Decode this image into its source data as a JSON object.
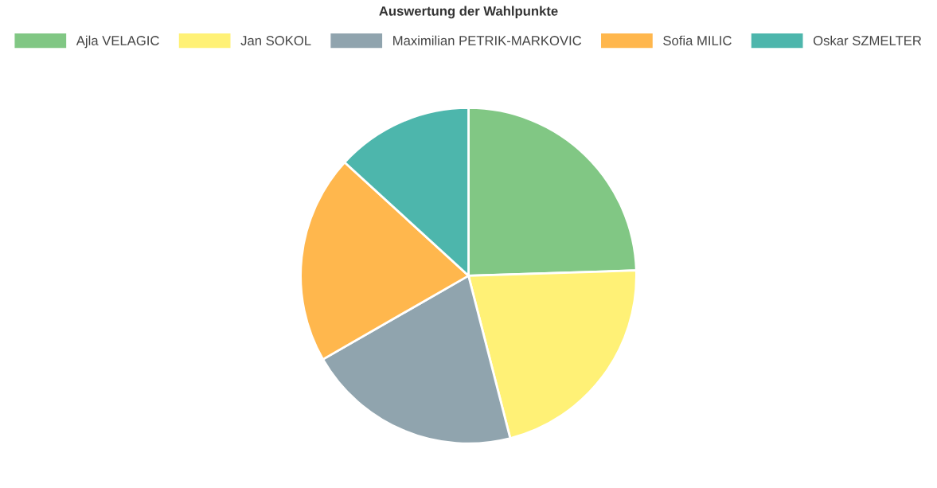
{
  "chart_data": {
    "type": "pie",
    "title": "Auswertung der Wahlpunkte",
    "categories": [
      "Ajla VELAGIC",
      "Jan SOKOL",
      "Maximilian PETRIK-MARKOVIC",
      "Sofia MILIC",
      "Oskar SZMELTER"
    ],
    "values": [
      24.5,
      21.5,
      20.7,
      20.1,
      13.2
    ],
    "colors": [
      "#81c784",
      "#fff176",
      "#90a4ae",
      "#ffb74d",
      "#4db6ac"
    ],
    "legend": "top"
  }
}
